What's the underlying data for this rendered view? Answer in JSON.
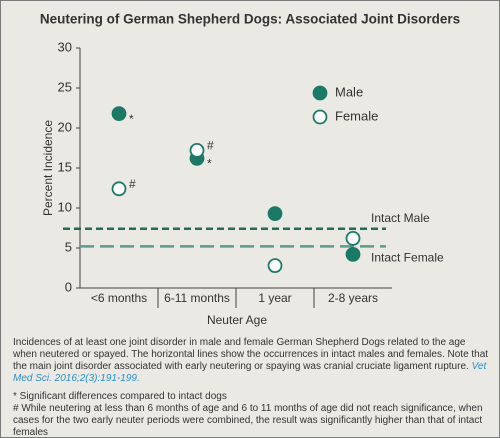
{
  "chart_data": {
    "type": "scatter",
    "title": "Neutering of German Shepherd Dogs: Associated Joint Disorders",
    "y_label": "Percent Incidence",
    "x_label": "Neuter Age",
    "categories": [
      "<6 months",
      "6-11 months",
      "1 year",
      "2-8 years"
    ],
    "series": [
      {
        "name": "Male",
        "color": "#1b7a66",
        "filled": true,
        "values": [
          21.8,
          16.2,
          9.3,
          4.2
        ],
        "point_labels": [
          "*",
          "*",
          null,
          null
        ]
      },
      {
        "name": "Female",
        "color": "#1b7a66",
        "filled": false,
        "values": [
          12.4,
          17.2,
          2.8,
          6.2
        ],
        "point_labels": [
          "#",
          "#",
          null,
          null
        ]
      }
    ],
    "reference_lines": [
      {
        "label": "Intact Male",
        "value": 7.4,
        "color": "#1f6b5c"
      },
      {
        "label": "Intact Female",
        "value": 5.2,
        "color": "#5b9a8c"
      }
    ],
    "ylim": [
      0,
      30
    ],
    "yticks": [
      0,
      5,
      10,
      15,
      20,
      25,
      30
    ],
    "legend": "upper right",
    "caption_text": "Incidences of at least one joint disorder in male and female German Shepherd Dogs related to the age when neutered or spayed. The horizontal lines show the occurrences in intact males and females. Note that the main joint disorder associated with early neutering or spaying was cranial cruciate ligament rupture.",
    "citation": "Vet Med Sci. 2016;2(3):191-199.",
    "footnotes": [
      "* Significant differences compared to intact dogs",
      "# While neutering at less than 6 months of age and 6 to 11 months of age did not reach significance, when cases for the two early neuter periods were combined, the result was significantly higher than that of intact females"
    ]
  }
}
